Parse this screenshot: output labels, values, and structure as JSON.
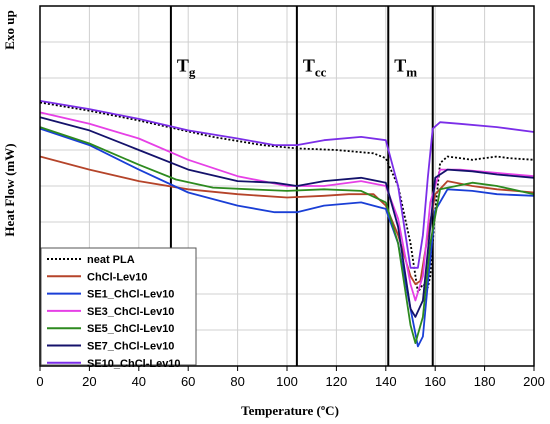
{
  "chart_data": {
    "type": "line",
    "title": "",
    "xlabel": "Temperature (ºC)",
    "ylabel": "Heat Flow (mW)",
    "ylabel_top": "Exo up",
    "xlim": [
      0,
      200
    ],
    "x_ticks": [
      "0",
      "20",
      "40",
      "60",
      "80",
      "100",
      "120",
      "140",
      "160",
      "180",
      "200"
    ],
    "grid": true,
    "legend_position": "bottom-left",
    "vlines": [
      {
        "x": 53,
        "label": "T",
        "sub": "g"
      },
      {
        "x": 104,
        "label": "T",
        "sub": "cc"
      },
      {
        "x": 141,
        "label": "T",
        "sub": "m"
      },
      {
        "x": 159,
        "label": "",
        "sub": ""
      }
    ],
    "series": [
      {
        "name": "neat PLA",
        "color": "#000000",
        "dash": true,
        "x": [
          0,
          20,
          40,
          55,
          70,
          90,
          104,
          120,
          135,
          140,
          145,
          150,
          153,
          155,
          157,
          158,
          160,
          162,
          165,
          175,
          185,
          190,
          200
        ],
        "y": [
          9.1,
          8.6,
          8.0,
          7.5,
          7.0,
          6.5,
          6.3,
          6.2,
          6.0,
          5.7,
          4.0,
          0.5,
          -2.5,
          -2.0,
          -2.2,
          -1.5,
          2.5,
          5.4,
          5.8,
          5.6,
          5.8,
          5.7,
          5.6
        ]
      },
      {
        "name": "ChCl-Lev10",
        "color": "#b5442a",
        "dash": false,
        "x": [
          0,
          20,
          40,
          60,
          80,
          100,
          115,
          125,
          135,
          140,
          145,
          150,
          152,
          154,
          157,
          160,
          165,
          175,
          185,
          200
        ],
        "y": [
          5.8,
          5.0,
          4.3,
          3.8,
          3.5,
          3.3,
          3.4,
          3.5,
          3.5,
          2.8,
          1.0,
          -1.5,
          -2.0,
          -1.8,
          1.0,
          3.5,
          4.3,
          4.0,
          3.8,
          3.6
        ]
      },
      {
        "name": "SE1_ChCl-Lev10",
        "color": "#1a3fd6",
        "dash": false,
        "x": [
          0,
          20,
          40,
          60,
          80,
          95,
          104,
          115,
          130,
          140,
          145,
          150,
          153,
          155,
          157,
          160,
          165,
          175,
          185,
          200
        ],
        "y": [
          7.5,
          6.5,
          5.0,
          3.6,
          2.8,
          2.4,
          2.4,
          2.8,
          3.0,
          2.6,
          0.5,
          -3.5,
          -5.8,
          -5.2,
          -2.0,
          2.5,
          3.8,
          3.7,
          3.5,
          3.4
        ]
      },
      {
        "name": "SE3_ChCl-Lev10",
        "color": "#e640e6",
        "dash": false,
        "x": [
          0,
          20,
          40,
          60,
          80,
          100,
          115,
          130,
          140,
          145,
          150,
          152,
          155,
          158,
          162,
          170,
          185,
          200
        ],
        "y": [
          8.5,
          7.8,
          6.9,
          5.6,
          4.6,
          4.0,
          4.0,
          4.3,
          4.0,
          2.0,
          -2.0,
          -3.0,
          -1.5,
          3.0,
          5.0,
          5.0,
          4.8,
          4.6
        ]
      },
      {
        "name": "SE5_ChCl-Lev10",
        "color": "#2d8a1f",
        "dash": false,
        "x": [
          0,
          20,
          40,
          55,
          70,
          85,
          100,
          115,
          130,
          140,
          145,
          150,
          152,
          155,
          158,
          162,
          175,
          185,
          200
        ],
        "y": [
          7.6,
          6.6,
          5.3,
          4.4,
          3.9,
          3.8,
          3.7,
          3.8,
          3.7,
          3.0,
          0.5,
          -4.5,
          -5.6,
          -4.0,
          0.5,
          3.8,
          4.2,
          4.0,
          3.5
        ]
      },
      {
        "name": "SE7_ChCl-Lev10",
        "color": "#14126b",
        "dash": false,
        "x": [
          0,
          20,
          40,
          60,
          80,
          95,
          104,
          115,
          130,
          140,
          145,
          150,
          152,
          155,
          157,
          160,
          165,
          175,
          185,
          200
        ],
        "y": [
          8.2,
          7.4,
          6.2,
          5.0,
          4.3,
          4.2,
          4.0,
          4.3,
          4.5,
          4.2,
          1.5,
          -3.5,
          -4.0,
          -3.0,
          0.0,
          4.5,
          5.0,
          4.9,
          4.7,
          4.5
        ]
      },
      {
        "name": "SE10_ChCl-Lev10",
        "color": "#7b2ee8",
        "dash": false,
        "x": [
          0,
          20,
          40,
          60,
          80,
          95,
          104,
          115,
          130,
          140,
          145,
          150,
          153,
          155,
          157,
          159,
          162,
          170,
          185,
          200
        ],
        "y": [
          9.2,
          8.7,
          8.1,
          7.4,
          6.9,
          6.5,
          6.5,
          6.8,
          7.0,
          6.8,
          4.0,
          -1.0,
          -1.0,
          1.0,
          4.5,
          7.5,
          7.9,
          7.8,
          7.6,
          7.3
        ]
      }
    ]
  }
}
